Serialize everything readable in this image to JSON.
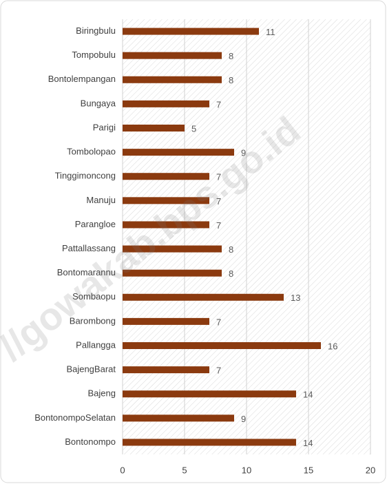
{
  "chart_data": {
    "type": "bar",
    "orientation": "horizontal",
    "categories": [
      "Biringbulu",
      "Tompobulu",
      "Bontolempangan",
      "Bungaya",
      "Parigi",
      "Tombolopao",
      "Tinggimoncong",
      "Manuju",
      "Parangloe",
      "Pattallassang",
      "Bontomarannu",
      "Sombaopu",
      "Barombong",
      "Pallangga",
      "BajengBarat",
      "Bajeng",
      "BontonompoSelatan",
      "Bontonompo"
    ],
    "values": [
      11,
      8,
      8,
      7,
      5,
      9,
      7,
      7,
      7,
      8,
      8,
      13,
      7,
      16,
      7,
      14,
      9,
      14
    ],
    "color": "#8b3a0f",
    "xlim": [
      0,
      20
    ],
    "xticks": [
      0,
      5,
      10,
      15,
      20
    ],
    "grid": true,
    "watermark": "//gowakab.bps.go.id"
  }
}
